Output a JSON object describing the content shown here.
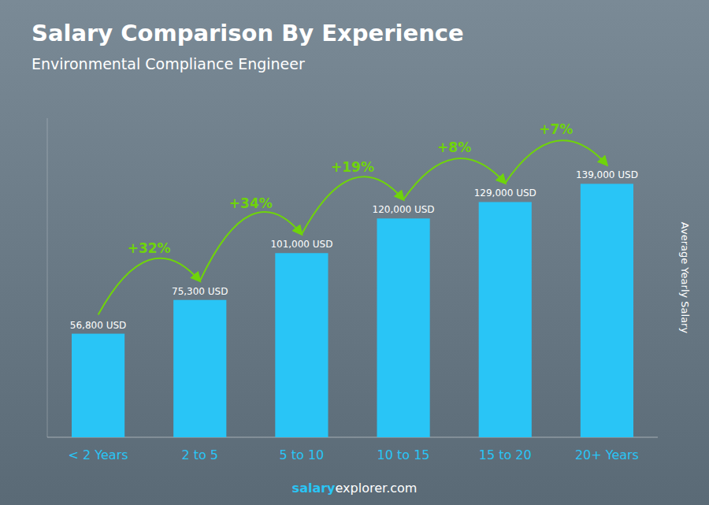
{
  "chart_data": {
    "type": "bar",
    "title": "Salary Comparison By Experience",
    "subtitle": "Environmental Compliance Engineer",
    "categories": [
      "< 2 Years",
      "2 to 5",
      "5 to 10",
      "10 to 15",
      "15 to 20",
      "20+ Years"
    ],
    "values": [
      56800,
      75300,
      101000,
      120000,
      129000,
      139000
    ],
    "value_labels": [
      "56,800 USD",
      "75,300 USD",
      "101,000 USD",
      "120,000 USD",
      "129,000 USD",
      "139,000 USD"
    ],
    "data_labels": true,
    "color": "#29C5F6",
    "y_label": "Average Yearly Salary",
    "ylim": [
      0,
      175000
    ],
    "yticks": [],
    "tick_labels": "x",
    "grid": false,
    "annotations": [
      {
        "text": "+32%",
        "color": "#6FD40A"
      },
      {
        "text": "+34%",
        "color": "#6FD40A"
      },
      {
        "text": "+19%",
        "color": "#6FD40A"
      },
      {
        "text": "+8%",
        "color": "#6FD40A"
      },
      {
        "text": "+7%",
        "color": "#6FD40A"
      }
    ],
    "footer": [
      "salary",
      "explorer.com"
    ]
  }
}
